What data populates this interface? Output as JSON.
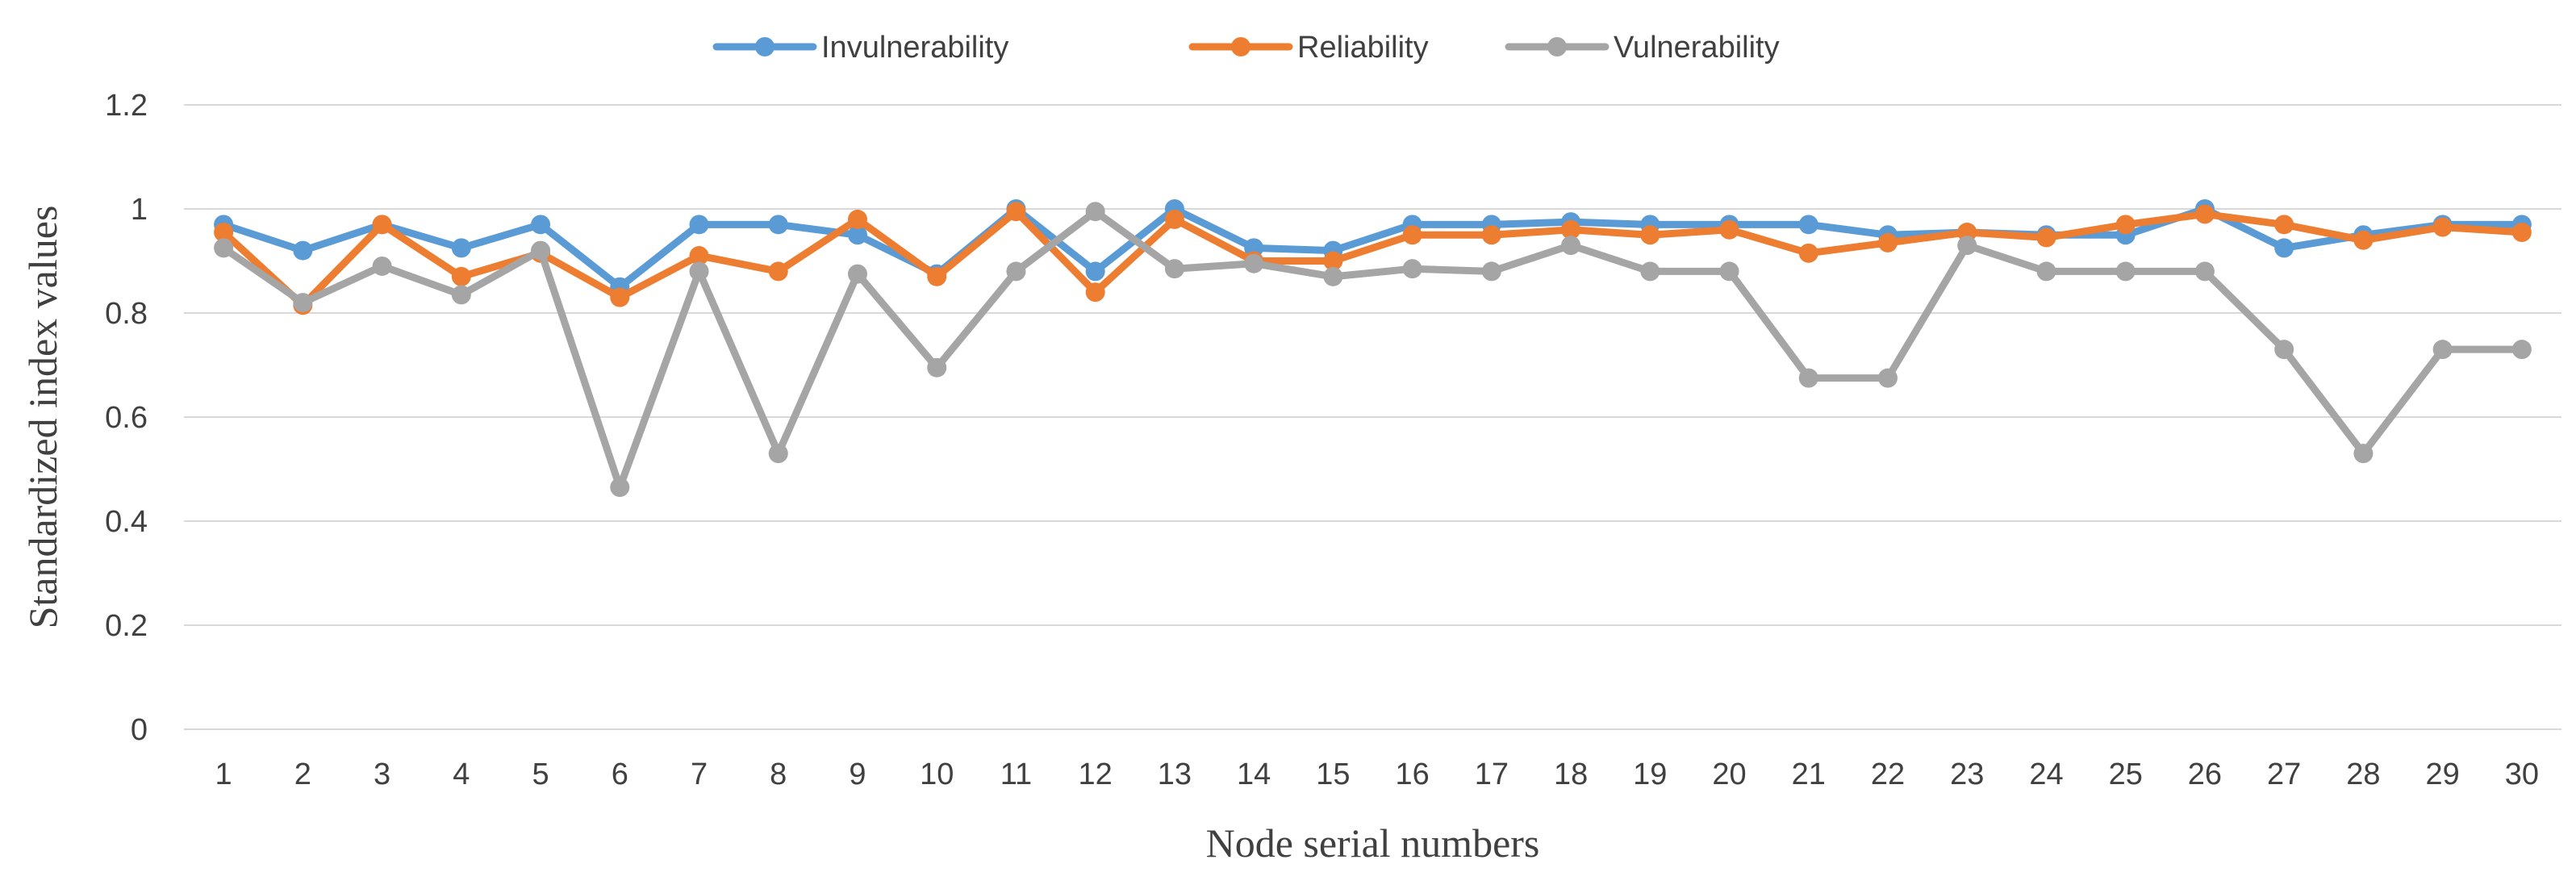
{
  "chart_data": {
    "type": "line",
    "title": "",
    "xlabel": "Node serial numbers",
    "ylabel": "Standardized index values",
    "ylim": [
      0,
      1.2
    ],
    "yticks": [
      0,
      0.2,
      0.4,
      0.6,
      0.8,
      1,
      1.2
    ],
    "ytick_labels": [
      "0",
      "0.2",
      "0.4",
      "0.6",
      "0.8",
      "1",
      "1.2"
    ],
    "grid": "horizontal",
    "legend_position": "top-center",
    "categories": [
      "1",
      "2",
      "3",
      "4",
      "5",
      "6",
      "7",
      "8",
      "9",
      "10",
      "11",
      "12",
      "13",
      "14",
      "15",
      "16",
      "17",
      "18",
      "19",
      "20",
      "21",
      "22",
      "23",
      "24",
      "25",
      "26",
      "27",
      "28",
      "29",
      "30"
    ],
    "series": [
      {
        "name": "Invulnerability",
        "color": "#5B9BD5",
        "values": [
          0.97,
          0.92,
          0.97,
          0.925,
          0.97,
          0.85,
          0.97,
          0.97,
          0.95,
          0.875,
          1.0,
          0.88,
          1.0,
          0.925,
          0.92,
          0.97,
          0.97,
          0.975,
          0.97,
          0.97,
          0.97,
          0.95,
          0.955,
          0.95,
          0.95,
          1.0,
          0.925,
          0.95,
          0.97,
          0.97
        ]
      },
      {
        "name": "Reliability",
        "color": "#ED7D31",
        "values": [
          0.955,
          0.815,
          0.97,
          0.87,
          0.915,
          0.83,
          0.91,
          0.88,
          0.98,
          0.87,
          0.995,
          0.84,
          0.98,
          0.9,
          0.9,
          0.95,
          0.95,
          0.96,
          0.95,
          0.96,
          0.915,
          0.935,
          0.955,
          0.945,
          0.97,
          0.99,
          0.97,
          0.94,
          0.965,
          0.955
        ]
      },
      {
        "name": "Vulnerability",
        "color": "#A5A5A5",
        "values": [
          0.925,
          0.82,
          0.89,
          0.835,
          0.92,
          0.465,
          0.88,
          0.53,
          0.875,
          0.695,
          0.88,
          0.995,
          0.885,
          0.895,
          0.87,
          0.885,
          0.88,
          0.93,
          0.88,
          0.88,
          0.675,
          0.675,
          0.93,
          0.88,
          0.88,
          0.88,
          0.73,
          0.53,
          0.73,
          0.73
        ]
      }
    ]
  }
}
